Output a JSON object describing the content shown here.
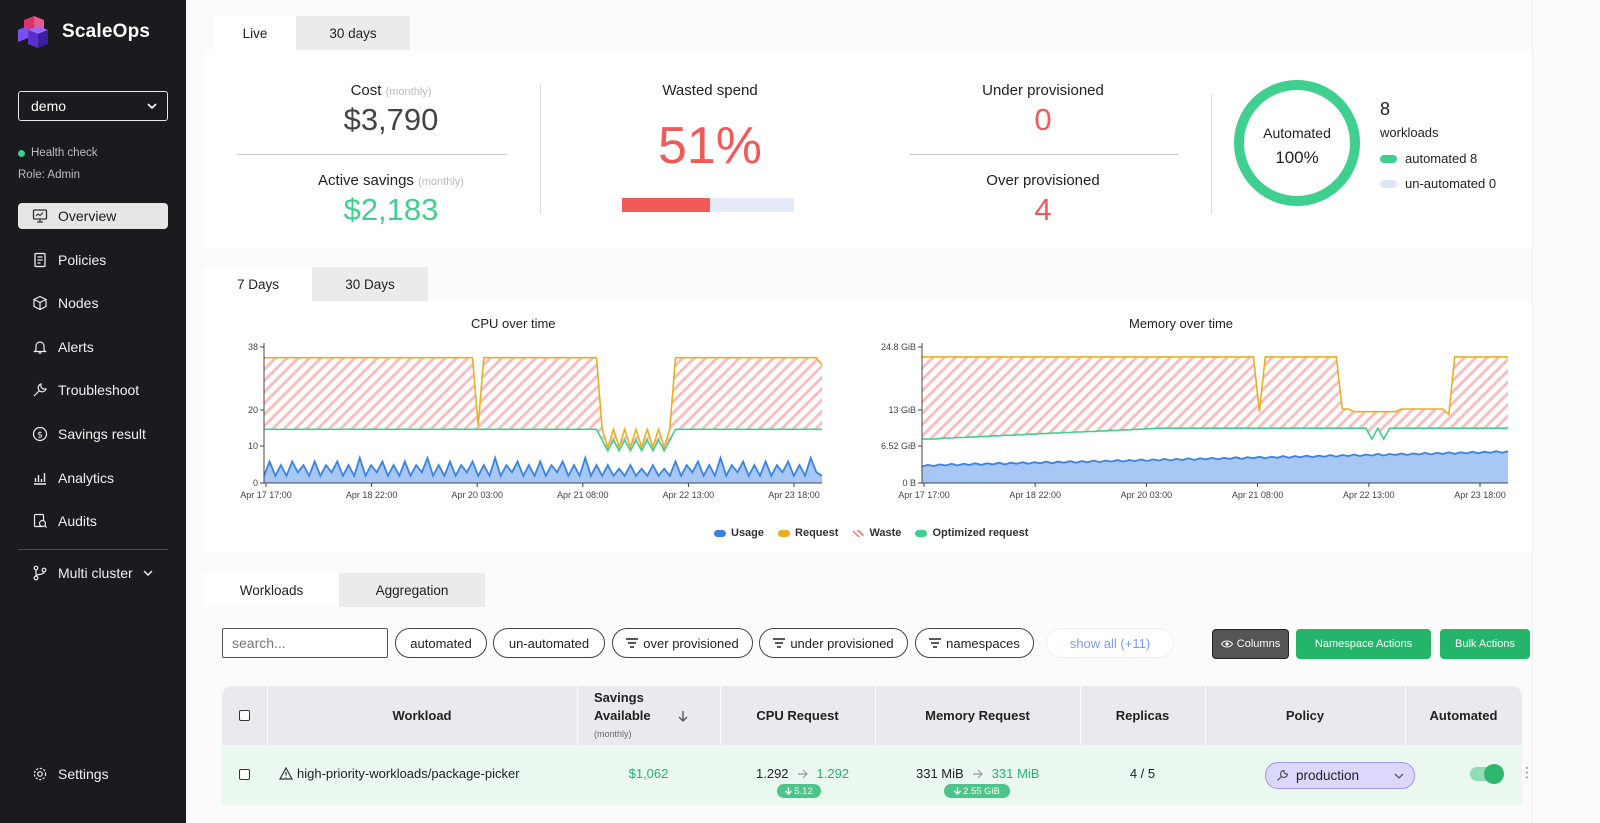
{
  "app": {
    "brand": "ScaleOps"
  },
  "sidebar": {
    "cluster": "demo",
    "health": "Health check",
    "role": "Role: Admin",
    "items": [
      {
        "label": "Overview",
        "icon": "monitor-icon",
        "active": true
      },
      {
        "label": "Policies",
        "icon": "document-icon"
      },
      {
        "label": "Nodes",
        "icon": "cube-icon"
      },
      {
        "label": "Alerts",
        "icon": "bell-icon"
      },
      {
        "label": "Troubleshoot",
        "icon": "troubleshoot-icon"
      },
      {
        "label": "Savings result",
        "icon": "dollar-icon"
      },
      {
        "label": "Analytics",
        "icon": "analytics-icon"
      },
      {
        "label": "Audits",
        "icon": "audit-icon"
      }
    ],
    "multi_cluster": "Multi cluster",
    "settings": "Settings"
  },
  "summary_tabs": [
    "Live",
    "30 days"
  ],
  "summary": {
    "cost_label": "Cost",
    "cost_period": "(monthly)",
    "cost_value": "$3,790",
    "savings_label": "Active savings",
    "savings_period": "(monthly)",
    "savings_value": "$2,183",
    "wasted_label": "Wasted spend",
    "wasted_value": "51%",
    "wasted_fraction": 0.51,
    "under_label": "Under provisioned",
    "under_value": "0",
    "over_label": "Over provisioned",
    "over_value": "4",
    "automated_label": "Automated",
    "automated_value": "100%",
    "workloads_count": "8",
    "workloads_label": "workloads",
    "automated_legend": "automated 8",
    "unautomated_legend": "un-automated 0"
  },
  "chart_tabs": [
    "7 Days",
    "30 Days"
  ],
  "colors": {
    "usage": "#3b82e6",
    "request": "#e8b020",
    "waste": "#f08a8a",
    "optimized": "#3fcf8e",
    "accent": "#24b56b",
    "danger": "#f25a5a"
  },
  "chart_data": [
    {
      "type": "area",
      "title": "CPU over time",
      "x_ticks": [
        "Apr 17 17:00",
        "Apr 18 22:00",
        "Apr 20 03:00",
        "Apr 21 08:00",
        "Apr 22 13:00",
        "Apr 23 18:00"
      ],
      "y_ticks": [
        "38",
        "20",
        "10",
        "0"
      ],
      "ylim": [
        0,
        38
      ],
      "series": [
        {
          "name": "Request",
          "values": [
            35,
            35,
            35,
            35,
            35,
            35,
            35,
            35,
            35,
            35,
            35,
            35,
            35,
            35,
            35,
            35,
            35,
            35,
            35,
            35,
            35,
            35,
            35,
            35,
            35,
            35,
            35,
            35,
            35,
            35,
            35,
            35,
            35,
            35,
            35,
            35,
            35,
            35,
            16,
            35,
            35,
            35,
            35,
            35,
            35,
            35,
            35,
            35,
            35,
            35,
            35,
            35,
            35,
            35,
            35,
            35,
            35,
            35,
            35,
            35,
            15,
            10,
            15,
            10,
            15,
            10,
            15,
            10,
            15,
            10,
            15,
            10,
            15,
            35,
            35,
            35,
            35,
            35,
            35,
            35,
            35,
            35,
            35,
            35,
            35,
            35,
            35,
            35,
            35,
            35,
            35,
            35,
            35,
            35,
            35,
            35,
            35,
            35,
            35,
            33
          ]
        },
        {
          "name": "Optimized request",
          "values": [
            15,
            15,
            15,
            15,
            15,
            15,
            15,
            15,
            15,
            15,
            15,
            15,
            15,
            15,
            15,
            15,
            15,
            15,
            15,
            15,
            15,
            15,
            15,
            15,
            15,
            15,
            15,
            15,
            15,
            15,
            15,
            15,
            15,
            15,
            15,
            15,
            15,
            15,
            15,
            15,
            15,
            15,
            15,
            15,
            15,
            15,
            15,
            15,
            15,
            15,
            15,
            15,
            15,
            15,
            15,
            15,
            15,
            15,
            15,
            15,
            12,
            9,
            12,
            9,
            12,
            9,
            12,
            9,
            12,
            9,
            12,
            9,
            12,
            15,
            15,
            15,
            15,
            15,
            15,
            15,
            15,
            15,
            15,
            15,
            15,
            15,
            15,
            15,
            15,
            15,
            15,
            15,
            15,
            15,
            15,
            15,
            15,
            15,
            15,
            15
          ]
        },
        {
          "name": "Usage",
          "values": [
            2,
            6,
            2,
            5,
            2,
            6,
            3,
            5,
            2,
            6,
            2,
            5,
            3,
            6,
            2,
            5,
            2,
            7,
            2,
            5,
            3,
            6,
            2,
            5,
            2,
            6,
            2,
            5,
            3,
            7,
            2,
            5,
            2,
            6,
            2,
            5,
            3,
            6,
            2,
            5,
            2,
            7,
            2,
            5,
            3,
            6,
            2,
            5,
            2,
            6,
            2,
            5,
            3,
            6,
            2,
            5,
            2,
            7,
            2,
            5,
            2,
            5,
            2,
            4,
            2,
            5,
            2,
            4,
            2,
            5,
            2,
            4,
            2,
            6,
            2,
            5,
            3,
            6,
            2,
            5,
            2,
            7,
            2,
            5,
            3,
            6,
            2,
            5,
            2,
            6,
            2,
            5,
            3,
            6,
            2,
            5,
            2,
            7,
            3,
            2
          ]
        }
      ]
    },
    {
      "type": "area",
      "title": "Memory over time",
      "x_ticks": [
        "Apr 17 17:00",
        "Apr 18 22:00",
        "Apr 20 03:00",
        "Apr 21 08:00",
        "Apr 22 13:00",
        "Apr 23 18:00"
      ],
      "y_ticks": [
        "24.8 GiB",
        "13 GiB",
        "6.52 GiB",
        "0 B"
      ],
      "ylim": [
        0,
        24.8
      ],
      "series": [
        {
          "name": "Request",
          "values": [
            23,
            23,
            23,
            23,
            23,
            23,
            23,
            23,
            23,
            23,
            23,
            23,
            23,
            23,
            23,
            23,
            23,
            23,
            23,
            23,
            23,
            23,
            23,
            23,
            23,
            23,
            23,
            23,
            23,
            23,
            23,
            23,
            23,
            23,
            23,
            23,
            23,
            23,
            23,
            23,
            23,
            23,
            23,
            23,
            23,
            23,
            23,
            23,
            23,
            23,
            23,
            23,
            23,
            23,
            23,
            23,
            23,
            13,
            23,
            23,
            23,
            23,
            23,
            23,
            23,
            23,
            23,
            23,
            23,
            23,
            23,
            13.5,
            13.5,
            13,
            13,
            13,
            13,
            13,
            13,
            13,
            13,
            13.5,
            13.5,
            13.5,
            13.5,
            13.5,
            13.5,
            13.5,
            13.5,
            12.5,
            23,
            23,
            23,
            23,
            23,
            23,
            23,
            23,
            23,
            23
          ]
        },
        {
          "name": "Optimized request",
          "values": [
            8,
            8,
            8,
            8.1,
            8.2,
            8.2,
            8.3,
            8.3,
            8.4,
            8.4,
            8.5,
            8.5,
            8.6,
            8.6,
            8.7,
            8.7,
            8.8,
            8.8,
            8.9,
            8.9,
            9,
            9,
            9.1,
            9.1,
            9.2,
            9.2,
            9.3,
            9.3,
            9.4,
            9.4,
            9.5,
            9.5,
            9.6,
            9.6,
            9.7,
            9.7,
            9.8,
            9.8,
            9.9,
            9.9,
            10,
            10,
            10,
            10,
            10,
            10,
            10,
            10,
            10,
            10,
            10,
            10,
            10,
            10,
            10,
            10,
            10,
            10,
            10,
            10,
            10,
            10,
            10,
            10,
            10,
            10,
            10,
            10,
            10,
            10,
            10,
            10,
            10,
            10,
            10,
            10,
            8,
            10,
            8,
            10,
            10,
            10,
            10,
            10,
            10,
            10,
            10,
            10,
            10,
            10,
            10,
            10,
            10,
            10,
            10,
            10,
            10,
            10,
            10,
            10
          ]
        },
        {
          "name": "Usage",
          "values": [
            3,
            3.3,
            3.1,
            3.4,
            3.2,
            3.5,
            3.2,
            3.5,
            3.3,
            3.6,
            3.3,
            3.6,
            3.4,
            3.7,
            3.4,
            3.7,
            3.5,
            3.8,
            3.5,
            3.8,
            3.6,
            3.9,
            3.6,
            3.9,
            3.7,
            4,
            3.7,
            4,
            3.8,
            4.1,
            3.8,
            4.1,
            3.9,
            4.2,
            3.9,
            4.2,
            4,
            4.3,
            4,
            4.3,
            4.1,
            4.4,
            4.1,
            4.4,
            4.2,
            4.5,
            4.2,
            4.5,
            4.3,
            4.6,
            4.3,
            4.6,
            4.4,
            4.7,
            4.4,
            4.7,
            4.5,
            4.8,
            4.5,
            4.8,
            4.6,
            4.9,
            4.6,
            4.9,
            4.7,
            5,
            4.7,
            5,
            4.8,
            5.1,
            4.8,
            5.1,
            4.9,
            5.2,
            4.9,
            5.2,
            5,
            5.3,
            5,
            5.3,
            5.1,
            5.4,
            5.1,
            5.4,
            5.2,
            5.5,
            5.2,
            5.5,
            5.3,
            5.6,
            5.3,
            5.6,
            5.4,
            5.7,
            5.4,
            5.7,
            5.5,
            5.8,
            5.5,
            5.8
          ]
        }
      ]
    }
  ],
  "legend": [
    {
      "label": "Usage",
      "color": "#3b82e6"
    },
    {
      "label": "Request",
      "color": "#e8b020"
    },
    {
      "label": "Waste",
      "color": "hatch"
    },
    {
      "label": "Optimized request",
      "color": "#3fcf8e"
    }
  ],
  "table_tabs": [
    "Workloads",
    "Aggregation"
  ],
  "filters": {
    "search_placeholder": "search...",
    "chips": [
      "automated",
      "un-automated",
      "over provisioned",
      "under provisioned",
      "namespaces"
    ],
    "show_all": "show all (+11)",
    "columns": "Columns",
    "namespace_actions": "Namespace Actions",
    "bulk_actions": "Bulk Actions"
  },
  "table": {
    "headers": {
      "workload": "Workload",
      "savings": "Savings Available",
      "savings_period": "(monthly)",
      "cpu": "CPU Request",
      "memory": "Memory Request",
      "replicas": "Replicas",
      "policy": "Policy",
      "automated": "Automated"
    },
    "rows": [
      {
        "workload": "high-priority-workloads/package-picker",
        "savings": "$1,062",
        "cpu_current": "1.292",
        "cpu_recommended": "1.292",
        "cpu_saving": "5.12",
        "mem_current": "331 MiB",
        "mem_recommended": "331 MiB",
        "mem_saving": "2.55 GiB",
        "replicas": "4 / 5",
        "policy": "production",
        "automated": true
      }
    ]
  }
}
